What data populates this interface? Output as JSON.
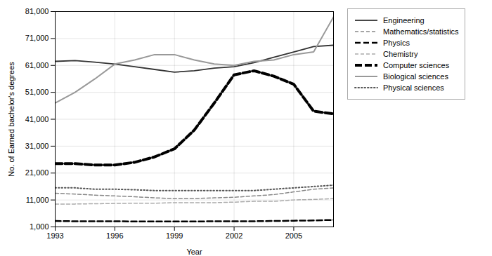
{
  "chart_data": {
    "type": "line",
    "xlabel": "Year",
    "ylabel": "No. of Earned bachelor's degrees",
    "x": [
      1993,
      1994,
      1995,
      1996,
      1997,
      1998,
      1999,
      2000,
      2001,
      2002,
      2003,
      2004,
      2005,
      2006,
      2007
    ],
    "series": [
      {
        "name": "Engineering",
        "color": "#333333",
        "line_style": "solid",
        "values": [
          62500,
          62800,
          62200,
          61500,
          60500,
          59500,
          58500,
          59000,
          60000,
          60500,
          62000,
          64000,
          66000,
          68000,
          68500
        ]
      },
      {
        "name": "Mathematics/statistics",
        "color": "#888888",
        "line_style": "dashed",
        "values": [
          13500,
          13200,
          12800,
          12500,
          12200,
          11800,
          11500,
          11500,
          11800,
          12000,
          12500,
          13000,
          14000,
          15000,
          15500
        ]
      },
      {
        "name": "Physics",
        "color": "#000000",
        "line_style": "dashed",
        "values": [
          3200,
          3100,
          3100,
          3100,
          3000,
          3000,
          3000,
          3000,
          3100,
          3100,
          3100,
          3200,
          3300,
          3400,
          3600
        ]
      },
      {
        "name": "Chemistry",
        "color": "#aaaaaa",
        "line_style": "dashed",
        "values": [
          9500,
          9500,
          9600,
          9700,
          9800,
          9800,
          10000,
          10000,
          10000,
          10200,
          10500,
          10500,
          11000,
          11200,
          11500
        ]
      },
      {
        "name": "Computer sciences",
        "color": "#000000",
        "line_style": "dashed",
        "values": [
          24500,
          24500,
          24000,
          24000,
          25000,
          27000,
          30000,
          37000,
          47000,
          57500,
          59000,
          57000,
          54000,
          44000,
          43000
        ]
      },
      {
        "name": "Biological sciences",
        "color": "#999999",
        "line_style": "solid",
        "values": [
          47000,
          51000,
          56000,
          61500,
          63000,
          65000,
          65000,
          63000,
          61500,
          61000,
          62500,
          63000,
          65000,
          66000,
          79000
        ]
      },
      {
        "name": "Physical sciences",
        "color": "#555555",
        "line_style": "dotted",
        "values": [
          15500,
          15500,
          15000,
          15000,
          14800,
          14500,
          14500,
          14500,
          14500,
          14500,
          14500,
          15000,
          15500,
          16000,
          16500
        ]
      }
    ],
    "xlim": [
      1993,
      2007
    ],
    "xticks": [
      1993,
      1996,
      1999,
      2002,
      2005
    ],
    "ylim": [
      1000,
      81000
    ],
    "yticks": [
      {
        "value": 1000,
        "label": "1,000"
      },
      {
        "value": 11000,
        "label": "11,000"
      },
      {
        "value": 21000,
        "label": "21,000"
      },
      {
        "value": 31000,
        "label": "31,000"
      },
      {
        "value": 41000,
        "label": "41,000"
      },
      {
        "value": 51000,
        "label": "51,000"
      },
      {
        "value": 61000,
        "label": "61,000"
      },
      {
        "value": 71000,
        "label": "71,000"
      },
      {
        "value": 81000,
        "label": "81,000"
      }
    ],
    "grid": true,
    "legend": "right"
  }
}
